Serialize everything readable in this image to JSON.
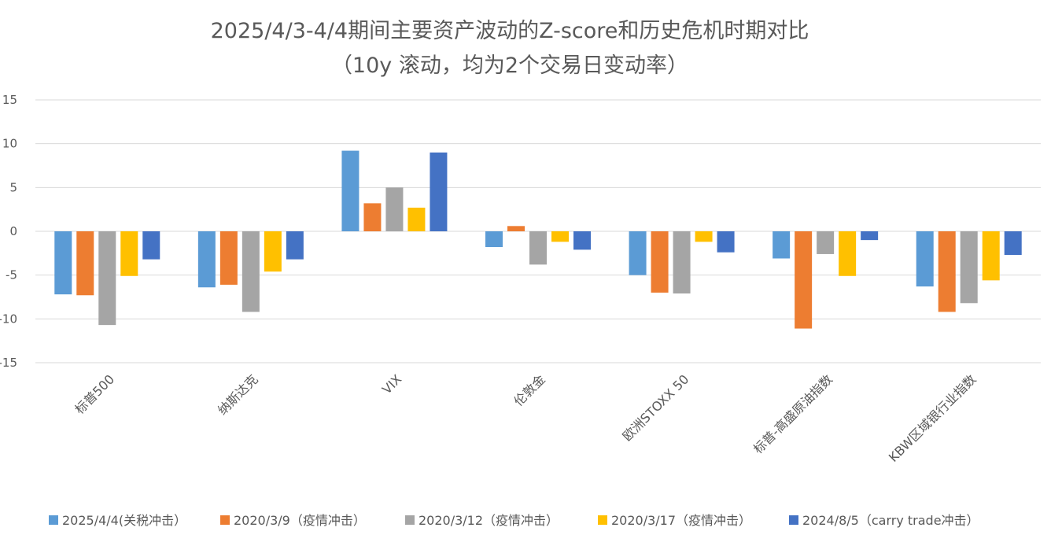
{
  "chart_data": {
    "type": "bar",
    "title": "2025/4/3-4/4期间主要资产波动的Z-score和历史危机时期对比",
    "subtitle": "（10y 滚动，均为2个交易日变动率）",
    "xlabel": "",
    "ylabel": "",
    "ylim": [
      -15,
      15
    ],
    "yticks": [
      15,
      10,
      5,
      0,
      -5,
      -10,
      -15
    ],
    "grid": true,
    "legend_position": "bottom",
    "categories": [
      "标普500",
      "纳斯达克",
      "VIX",
      "伦敦金",
      "欧洲STOXX 50",
      "标普-高盛原油指数",
      "KBW区域银行业指数"
    ],
    "series": [
      {
        "name": "2025/4/4(关税冲击）",
        "color": "#5b9bd5",
        "values": [
          -7.2,
          -6.4,
          9.2,
          -1.8,
          -5.0,
          -3.1,
          -6.3
        ]
      },
      {
        "name": "2020/3/9（疫情冲击）",
        "color": "#ed7d31",
        "values": [
          -7.3,
          -6.1,
          3.2,
          0.6,
          -7.0,
          -11.1,
          -9.2
        ]
      },
      {
        "name": "2020/3/12（疫情冲击）",
        "color": "#a5a5a5",
        "values": [
          -10.7,
          -9.2,
          5.0,
          -3.8,
          -7.1,
          -2.6,
          -8.2
        ]
      },
      {
        "name": "2020/3/17（疫情冲击）",
        "color": "#ffc000",
        "values": [
          -5.1,
          -4.6,
          2.7,
          -1.2,
          -1.2,
          -5.1,
          -5.6
        ]
      },
      {
        "name": "2024/8/5（carry trade冲击）",
        "color": "#4472c4",
        "values": [
          -3.2,
          -3.2,
          9.0,
          -2.1,
          -2.4,
          -1.0,
          -2.7
        ]
      }
    ]
  }
}
